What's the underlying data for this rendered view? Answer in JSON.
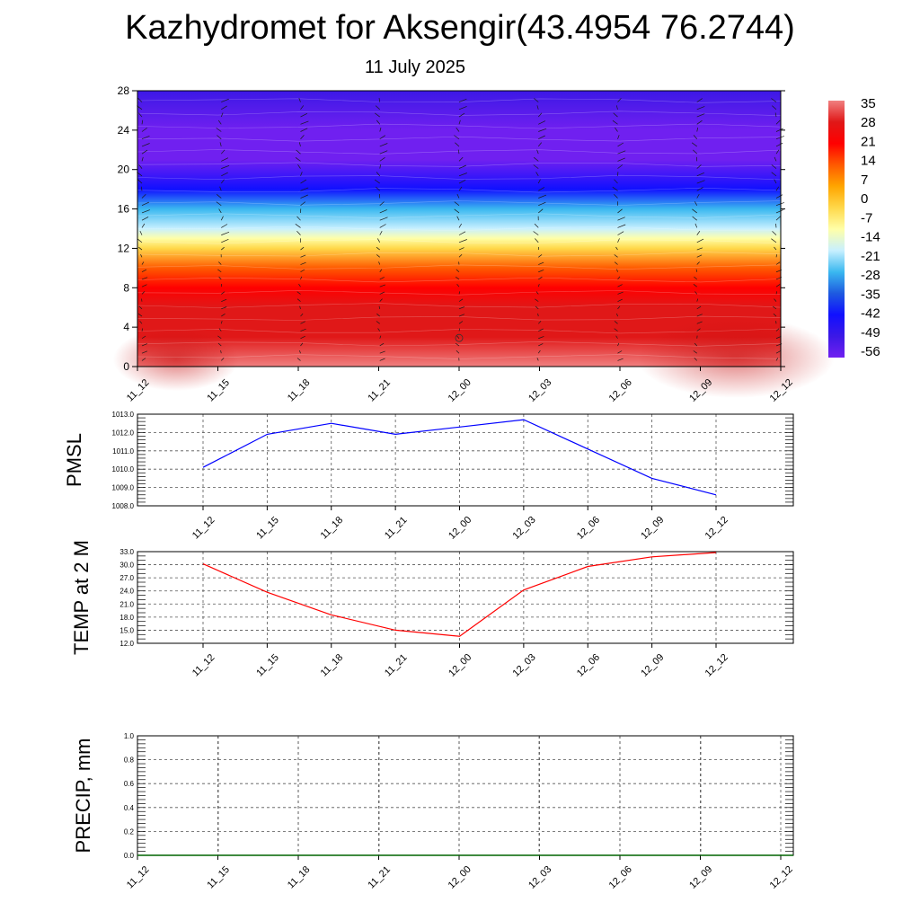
{
  "header": {
    "title": "Kazhydromet for Aksengir(43.4954 76.2744)",
    "subtitle": "11 July 2025"
  },
  "colors": {
    "pressure_line": "#0000ff",
    "temperature_line": "#ff0000",
    "precip_line": "#006400",
    "palette": [
      "#f08080",
      "#e01818",
      "#ff0000",
      "#ff5a00",
      "#ffa500",
      "#ffd84a",
      "#ffffa8",
      "#c8f0ff",
      "#3ab8f0",
      "#1e5ae0",
      "#1010ff",
      "#3c18e6",
      "#7020f0"
    ]
  },
  "chart_data": [
    {
      "id": "cross_section",
      "type": "heatmap",
      "title": "",
      "ylabel": "",
      "ylim": [
        0,
        28
      ],
      "yticks": [
        "0",
        "4",
        "8",
        "12",
        "16",
        "20",
        "24",
        "28"
      ],
      "xticks": [
        "11_12",
        "11_15",
        "11_18",
        "11_21",
        "12_00",
        "12_03",
        "12_06",
        "12_09",
        "12_12"
      ],
      "colorbar": {
        "labels": [
          "35",
          "28",
          "21",
          "14",
          "7",
          "0",
          "-7",
          "-14",
          "-21",
          "-28",
          "-35",
          "-42",
          "-49",
          "-56"
        ]
      },
      "temperature_profile": [
        {
          "height": 0,
          "value": 33
        },
        {
          "height": 3,
          "value": 30
        },
        {
          "height": 6,
          "value": 24
        },
        {
          "height": 8,
          "value": 17
        },
        {
          "height": 10,
          "value": 9
        },
        {
          "height": 12,
          "value": 0
        },
        {
          "height": 13,
          "value": -9
        },
        {
          "height": 14,
          "value": -18
        },
        {
          "height": 16,
          "value": -28
        },
        {
          "height": 18,
          "value": -40
        },
        {
          "height": 21,
          "value": -55
        },
        {
          "height": 24,
          "value": -56
        },
        {
          "height": 28,
          "value": -52
        }
      ],
      "wind_barbs": "present"
    },
    {
      "id": "pmsl",
      "type": "line",
      "ylabel": "PMSL",
      "ylim": [
        1008.0,
        1013.0
      ],
      "yticks": [
        "1008.0",
        "1009.0",
        "1010.0",
        "1011.0",
        "1012.0",
        "1013.0"
      ],
      "categories": [
        "11_12",
        "11_15",
        "11_18",
        "11_21",
        "12_00",
        "12_03",
        "12_06",
        "12_09",
        "12_12"
      ],
      "series": [
        {
          "values": [
            1010.1,
            1011.9,
            1012.5,
            1011.9,
            1012.3,
            1012.7,
            1011.1,
            1009.5,
            1008.6
          ]
        }
      ],
      "grid": true
    },
    {
      "id": "temp2m",
      "type": "line",
      "ylabel": "TEMP at 2 M",
      "ylim": [
        12.0,
        33.0
      ],
      "yticks": [
        "12.0",
        "15.0",
        "18.0",
        "21.0",
        "24.0",
        "27.0",
        "30.0",
        "33.0"
      ],
      "categories": [
        "11_12",
        "11_15",
        "11_18",
        "11_21",
        "12_00",
        "12_03",
        "12_06",
        "12_09",
        "12_12"
      ],
      "series": [
        {
          "values": [
            30.2,
            23.7,
            18.5,
            15.0,
            13.6,
            24.2,
            29.6,
            31.8,
            32.8
          ]
        }
      ],
      "grid": true
    },
    {
      "id": "precip",
      "type": "line",
      "ylabel": "PRECIP, mm",
      "ylim": [
        0.0,
        1.0
      ],
      "yticks": [
        "0.0",
        "0.2",
        "0.4",
        "0.6",
        "0.8",
        "1.0"
      ],
      "xticks": [
        "11_12",
        "11_15",
        "11_18",
        "11_21",
        "12_00",
        "12_03",
        "12_06",
        "12_09",
        "12_12"
      ],
      "series": [
        {
          "values": [
            0,
            0,
            0,
            0,
            0,
            0,
            0,
            0,
            0
          ]
        }
      ],
      "grid": true
    }
  ]
}
